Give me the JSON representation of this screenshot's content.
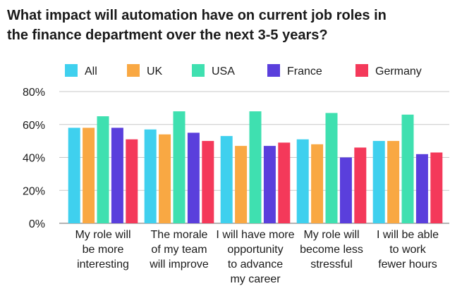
{
  "chart_data": {
    "type": "bar",
    "title_lines": [
      "What impact will automation have on current job roles in",
      "the finance department over the next 3-5 years?"
    ],
    "categories": [
      [
        "My role will",
        "be more",
        "interesting"
      ],
      [
        "The morale",
        "of my team",
        "will improve"
      ],
      [
        "I will have more",
        "opportunity",
        "to advance",
        "my career"
      ],
      [
        "My role will",
        "become less",
        "stressful"
      ],
      [
        "I will be able",
        "to work",
        "fewer hours"
      ]
    ],
    "series": [
      {
        "name": "All",
        "color": "#3fd0ee",
        "values": [
          58,
          57,
          53,
          51,
          50
        ]
      },
      {
        "name": "UK",
        "color": "#f9a843",
        "values": [
          58,
          54,
          47,
          48,
          50
        ]
      },
      {
        "name": "USA",
        "color": "#3fe0b0",
        "values": [
          65,
          68,
          68,
          67,
          66
        ]
      },
      {
        "name": "France",
        "color": "#5a3fdc",
        "values": [
          58,
          55,
          47,
          40,
          42
        ]
      },
      {
        "name": "Germany",
        "color": "#f4395a",
        "values": [
          51,
          50,
          49,
          46,
          43
        ]
      }
    ],
    "yticks": [
      "0%",
      "20%",
      "40%",
      "60%",
      "80%"
    ],
    "ylim": [
      0,
      80
    ],
    "grid": true,
    "legend_position": "top"
  }
}
